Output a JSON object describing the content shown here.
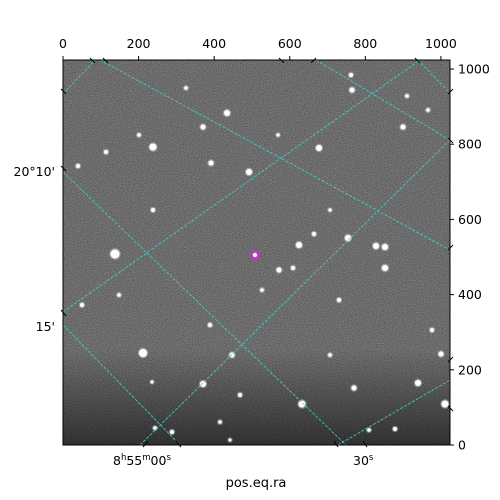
{
  "chart_data": {
    "type": "image",
    "xlabel": "pos.eq.ra",
    "ylabel": "",
    "pixel_x_axis": {
      "range": [
        0,
        1024
      ],
      "ticks": [
        0,
        200,
        400,
        600,
        800,
        1000
      ],
      "tick_labels": [
        "0",
        "200",
        "400",
        "600",
        "800",
        "1000"
      ]
    },
    "pixel_y_axis": {
      "range": [
        0,
        1024
      ],
      "ticks": [
        0,
        200,
        400,
        600,
        800,
        1000
      ],
      "tick_labels": [
        "0",
        "200",
        "400",
        "600",
        "800",
        "1000"
      ]
    },
    "ra_ticks": [
      {
        "label_prefix": "8",
        "h": "h",
        "min": "55",
        "m": "m",
        "sec": "00",
        "s": "s"
      },
      {
        "label_prefix": "",
        "h": "",
        "min": "",
        "m": "",
        "sec": "30",
        "s": "s"
      }
    ],
    "dec_ticks": [
      "20°10'",
      "15'"
    ],
    "grid": true,
    "grid_color": "#3fd1c9",
    "marker_color": "#d42ad4",
    "background": "grayscale-sky"
  }
}
